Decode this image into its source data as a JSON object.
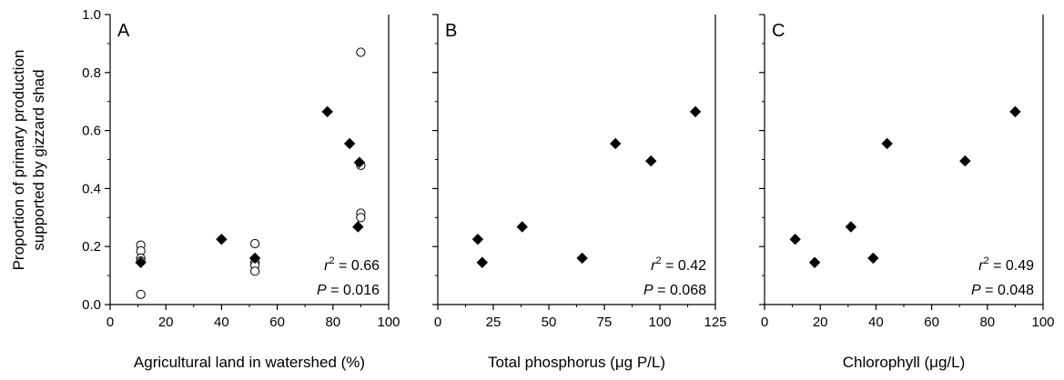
{
  "colors": {
    "axis": "#000000",
    "filled_marker": "#000000",
    "open_marker": "#ffffff",
    "background": "#ffffff"
  },
  "y_axis_label_lines": [
    "Proportion of primary production",
    "supported by gizzard shad"
  ],
  "chart_data": [
    {
      "type": "scatter",
      "panel": "A",
      "xlabel": "Agricultural land in watershed (%)",
      "xlim": [
        0,
        100
      ],
      "ylim": [
        0,
        1.0
      ],
      "x_ticks": [
        "0",
        "20",
        "40",
        "60",
        "80",
        "100"
      ],
      "y_ticks": [
        "0.0",
        "0.2",
        "0.4",
        "0.6",
        "0.8",
        "1.0"
      ],
      "grid": false,
      "legend": "none",
      "stats": {
        "r2_label": "r",
        "r2_sup": "2",
        "r2_value": " = 0.66",
        "p_label": "P",
        "p_value": " = 0.016"
      },
      "series": [
        {
          "marker": "filled-diamond",
          "x": [
            11,
            40,
            52,
            78,
            86,
            89,
            89.5
          ],
          "y": [
            0.145,
            0.225,
            0.16,
            0.665,
            0.555,
            0.268,
            0.49
          ]
        },
        {
          "marker": "open-circle",
          "x": [
            11,
            11,
            11,
            11,
            11,
            52,
            52,
            52,
            52,
            90,
            90,
            90,
            90
          ],
          "y": [
            0.205,
            0.185,
            0.16,
            0.15,
            0.035,
            0.21,
            0.145,
            0.135,
            0.115,
            0.87,
            0.48,
            0.315,
            0.3
          ]
        }
      ]
    },
    {
      "type": "scatter",
      "panel": "B",
      "xlabel": "Total phosphorus (μg P/L)",
      "xlim": [
        0,
        125
      ],
      "ylim": [
        0,
        1.0
      ],
      "x_ticks": [
        "0",
        "25",
        "50",
        "75",
        "100",
        "125"
      ],
      "grid": false,
      "legend": "none",
      "stats": {
        "r2_label": "r",
        "r2_sup": "2",
        "r2_value": " = 0.42",
        "p_label": "P",
        "p_value": " = 0.068"
      },
      "series": [
        {
          "marker": "filled-diamond",
          "x": [
            18,
            20,
            38,
            65,
            80,
            96,
            116
          ],
          "y": [
            0.225,
            0.145,
            0.268,
            0.16,
            0.555,
            0.495,
            0.665
          ]
        }
      ]
    },
    {
      "type": "scatter",
      "panel": "C",
      "xlabel": "Chlorophyll (μg/L)",
      "xlim": [
        0,
        100
      ],
      "ylim": [
        0,
        1.0
      ],
      "x_ticks": [
        "0",
        "20",
        "40",
        "60",
        "80",
        "100"
      ],
      "grid": false,
      "legend": "none",
      "stats": {
        "r2_label": "r",
        "r2_sup": "2",
        "r2_value": " = 0.49",
        "p_label": "P",
        "p_value": " = 0.048"
      },
      "series": [
        {
          "marker": "filled-diamond",
          "x": [
            11,
            18,
            31,
            39,
            44,
            72,
            90
          ],
          "y": [
            0.225,
            0.145,
            0.268,
            0.16,
            0.555,
            0.495,
            0.665
          ]
        }
      ]
    }
  ]
}
